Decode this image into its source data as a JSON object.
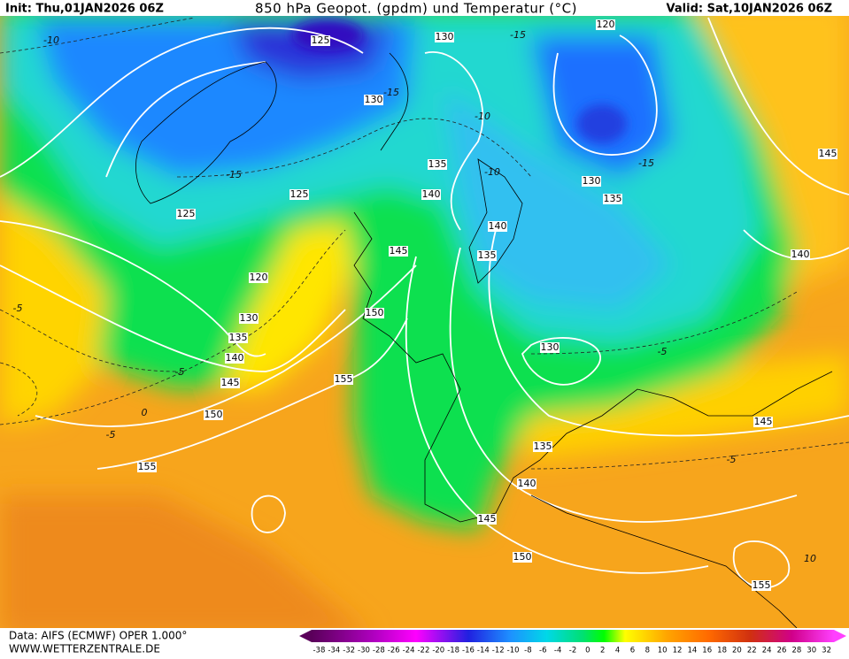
{
  "header": {
    "init": "Init: Thu,01JAN2026 06Z",
    "title": "850 hPa Geopot. (gpdm) und Temperatur (°C)",
    "valid": "Valid: Sat,10JAN2026 06Z"
  },
  "map": {
    "geopotential_labels": [
      "125",
      "130",
      "120",
      "130",
      "135",
      "140",
      "125",
      "125",
      "130",
      "135",
      "140",
      "135",
      "145",
      "120",
      "130",
      "135",
      "140",
      "145",
      "150",
      "155",
      "150",
      "130",
      "135",
      "140",
      "145",
      "150",
      "155",
      "145",
      "140",
      "145",
      "155"
    ],
    "temperature_labels": [
      "-10",
      "-15",
      "-15",
      "-10",
      "-10",
      "-15",
      "-15",
      "0",
      "-5",
      "-5",
      "-5",
      "-5",
      "-5",
      "10"
    ]
  },
  "footer": {
    "data": "Data: AIFS (ECMWF) OPER 1.000°",
    "website": "WWW.WETTERZENTRALE.DE"
  },
  "colorbar": {
    "labels": [
      "-38",
      "-34",
      "-32",
      "-30",
      "-28",
      "-26",
      "-24",
      "-22",
      "-20",
      "-18",
      "-16",
      "-14",
      "-12",
      "-10",
      "-8",
      "-6",
      "-4",
      "-2",
      "0",
      "2",
      "4",
      "6",
      "8",
      "10",
      "12",
      "14",
      "16",
      "18",
      "20",
      "22",
      "24",
      "26",
      "28",
      "30",
      "32"
    ]
  }
}
